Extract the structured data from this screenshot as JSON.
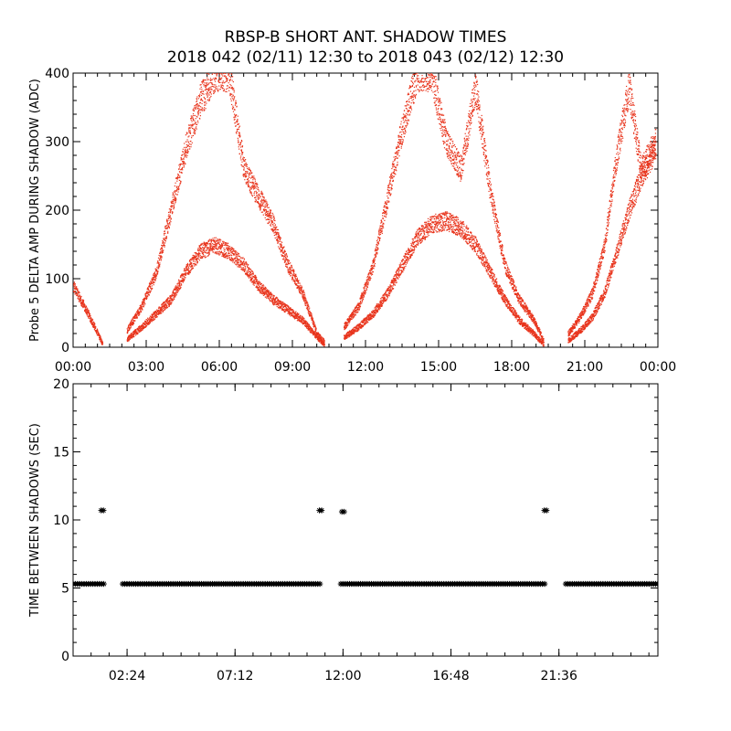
{
  "title": "RBSP-B SHORT ANT. SHADOW TIMES",
  "subtitle": "2018 042 (02/11) 12:30 to 2018 043 (02/12) 12:30",
  "colors": {
    "trace": "#e8341c",
    "axis": "#000000",
    "background": "#ffffff"
  },
  "chart_data": [
    {
      "type": "scatter",
      "ylabel": "Probe 5 DELTA AMP DURING SHADOW (ADC)",
      "xlabel": "",
      "xlim": [
        0,
        24
      ],
      "ylim": [
        0,
        400
      ],
      "xtick_values": [
        0,
        3,
        6,
        9,
        12,
        15,
        18,
        21,
        24
      ],
      "xtick_labels": [
        "00:00",
        "03:00",
        "06:00",
        "09:00",
        "12:00",
        "15:00",
        "18:00",
        "21:00",
        "00:00"
      ],
      "ytick_values": [
        0,
        100,
        200,
        300,
        400
      ],
      "ytick_labels": [
        "0",
        "100",
        "200",
        "300",
        "400"
      ],
      "grid": false,
      "series": [
        {
          "segments": [
            {
              "x": [
                0.0,
                0.3,
                0.6,
                0.9,
                1.2
              ],
              "y": [
                90,
                70,
                50,
                28,
                5
              ]
            },
            {
              "x": [
                2.2,
                2.8,
                3.4,
                4.0,
                4.6,
                5.2,
                5.8,
                6.4,
                7.0,
                7.6,
                8.2,
                8.8,
                9.4,
                10.0,
                10.3
              ],
              "y": [
                12,
                30,
                50,
                70,
                110,
                140,
                150,
                140,
                120,
                90,
                70,
                55,
                40,
                15,
                5
              ]
            },
            {
              "x": [
                2.2,
                2.8,
                3.4,
                4.0,
                4.6,
                5.2,
                5.8,
                6.4,
                7.0,
                7.6,
                8.2,
                8.8,
                9.4,
                10.0,
                10.3
              ],
              "y": [
                25,
                60,
                110,
                200,
                290,
                360,
                400,
                400,
                260,
                220,
                180,
                120,
                80,
                20,
                8
              ]
            },
            {
              "x": [
                11.1,
                11.7,
                12.3,
                12.9,
                13.5,
                14.1,
                14.7,
                15.3,
                15.9,
                16.5,
                17.1,
                17.7,
                18.3,
                18.9,
                19.3
              ],
              "y": [
                15,
                30,
                50,
                80,
                120,
                160,
                180,
                185,
                175,
                150,
                110,
                70,
                40,
                20,
                5
              ]
            },
            {
              "x": [
                11.1,
                11.7,
                12.3,
                12.9,
                13.5,
                14.1,
                14.7,
                15.3,
                15.9,
                16.5,
                17.1,
                17.7,
                18.3,
                18.9,
                19.3
              ],
              "y": [
                30,
                60,
                120,
                220,
                320,
                400,
                400,
                300,
                260,
                380,
                230,
                120,
                70,
                40,
                10
              ]
            },
            {
              "x": [
                20.3,
                20.8,
                21.3,
                21.8,
                22.3,
                22.8,
                23.3,
                23.9
              ],
              "y": [
                10,
                25,
                45,
                80,
                140,
                200,
                250,
                290
              ]
            },
            {
              "x": [
                20.3,
                20.8,
                21.3,
                21.8,
                22.3,
                22.8,
                23.3,
                23.9
              ],
              "y": [
                20,
                45,
                80,
                150,
                280,
                380,
                260,
                300
              ]
            }
          ]
        }
      ]
    },
    {
      "type": "scatter",
      "ylabel": "TIME BETWEEN SHADOWS (SEC)",
      "xlabel": "",
      "xlim": [
        0,
        26
      ],
      "ylim": [
        0,
        20
      ],
      "xtick_values": [
        2.4,
        7.2,
        12.0,
        16.8,
        21.6
      ],
      "xtick_labels": [
        "02:24",
        "07:12",
        "12:00",
        "16:48",
        "21:36"
      ],
      "ytick_values": [
        0,
        5,
        10,
        15,
        20
      ],
      "ytick_labels": [
        "0",
        "5",
        "10",
        "15",
        "20"
      ],
      "grid": false,
      "series": [
        {
          "marker": "asterisk",
          "intervals": [
            {
              "x_start": 0.0,
              "x_end": 1.4,
              "y": 5.3
            },
            {
              "x_start": 2.2,
              "x_end": 11.0,
              "y": 5.3
            },
            {
              "x_start": 11.9,
              "x_end": 21.0,
              "y": 5.3
            },
            {
              "x_start": 21.9,
              "x_end": 26.0,
              "y": 5.3
            }
          ],
          "points": [
            {
              "x": 1.3,
              "y": 10.7
            },
            {
              "x": 11.0,
              "y": 10.7
            },
            {
              "x": 12.0,
              "y": 10.6
            },
            {
              "x": 21.0,
              "y": 10.7
            }
          ]
        }
      ]
    }
  ]
}
